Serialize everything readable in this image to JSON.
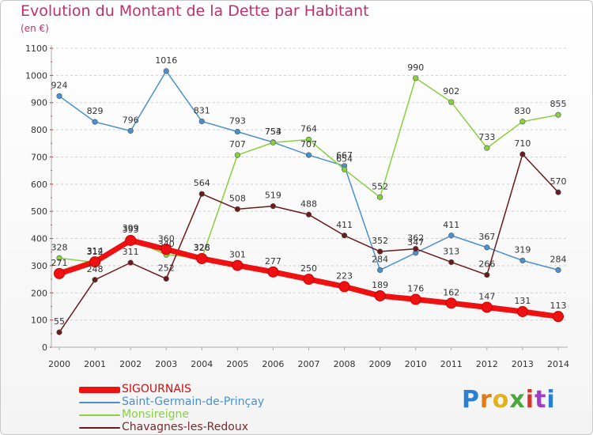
{
  "chart_data": {
    "type": "line",
    "title": "Evolution du Montant de la Dette par Habitant",
    "unit_label": "(en €)",
    "x": [
      "2000",
      "2001",
      "2002",
      "2003",
      "2004",
      "2005",
      "2006",
      "2007",
      "2008",
      "2009",
      "2010",
      "2011",
      "2012",
      "2013",
      "2014"
    ],
    "y_ticks": [
      "0",
      "100",
      "200",
      "300",
      "400",
      "500",
      "600",
      "700",
      "800",
      "900",
      "1000",
      "1100"
    ],
    "ylim": [
      0,
      1100
    ],
    "grid": "horizontal dashed",
    "series": [
      {
        "name": "SIGOURNAIS",
        "color": "#ee1111",
        "emphasis": true,
        "values": [
          271,
          314,
          393,
          360,
          326,
          301,
          277,
          250,
          223,
          189,
          176,
          162,
          147,
          131,
          113
        ],
        "labels": [
          "271",
          "314",
          "393",
          "360",
          "326",
          "301",
          "277",
          "250",
          "223",
          "189",
          "176",
          "162",
          "147",
          "131",
          "113"
        ]
      },
      {
        "name": "Saint-Germain-de-Prinçay",
        "color": "#4a90d0",
        "values": [
          924,
          829,
          796,
          1016,
          831,
          793,
          754,
          707,
          667,
          284,
          347,
          411,
          367,
          319,
          284
        ],
        "labels": [
          "924",
          "829",
          "796",
          "1016",
          "831",
          "793",
          "754",
          "707",
          "667",
          "284",
          "347",
          "411",
          "367",
          "319",
          "284"
        ]
      },
      {
        "name": "Monsireigne",
        "color": "#88d040",
        "values": [
          328,
          312,
          399,
          340,
          328,
          707,
          753,
          764,
          654,
          552,
          990,
          902,
          733,
          830,
          855
        ],
        "labels": [
          "328",
          "312",
          "399",
          "340",
          "328",
          "707",
          "753",
          "764",
          "654",
          "552",
          "990",
          "902",
          "733",
          "830",
          "855"
        ]
      },
      {
        "name": "Chavagnes-les-Redoux",
        "color": "#6a1a1a",
        "values": [
          55,
          248,
          311,
          252,
          564,
          508,
          519,
          488,
          411,
          352,
          362,
          313,
          266,
          710,
          570
        ],
        "labels": [
          "55",
          "248",
          "311",
          "252",
          "564",
          "508",
          "519",
          "488",
          "411",
          "352",
          "362",
          "313",
          "266",
          "710",
          "570"
        ]
      }
    ],
    "legend_position": "bottom-left"
  },
  "logo": {
    "letters": [
      "P",
      "r",
      "o",
      "x",
      "i",
      "t",
      "i"
    ],
    "colors": [
      "#2a7fd4",
      "#e07b1a",
      "#e2b21b",
      "#4aa83a",
      "#d8342a",
      "#a03cc8",
      "#2a7fd4"
    ]
  }
}
